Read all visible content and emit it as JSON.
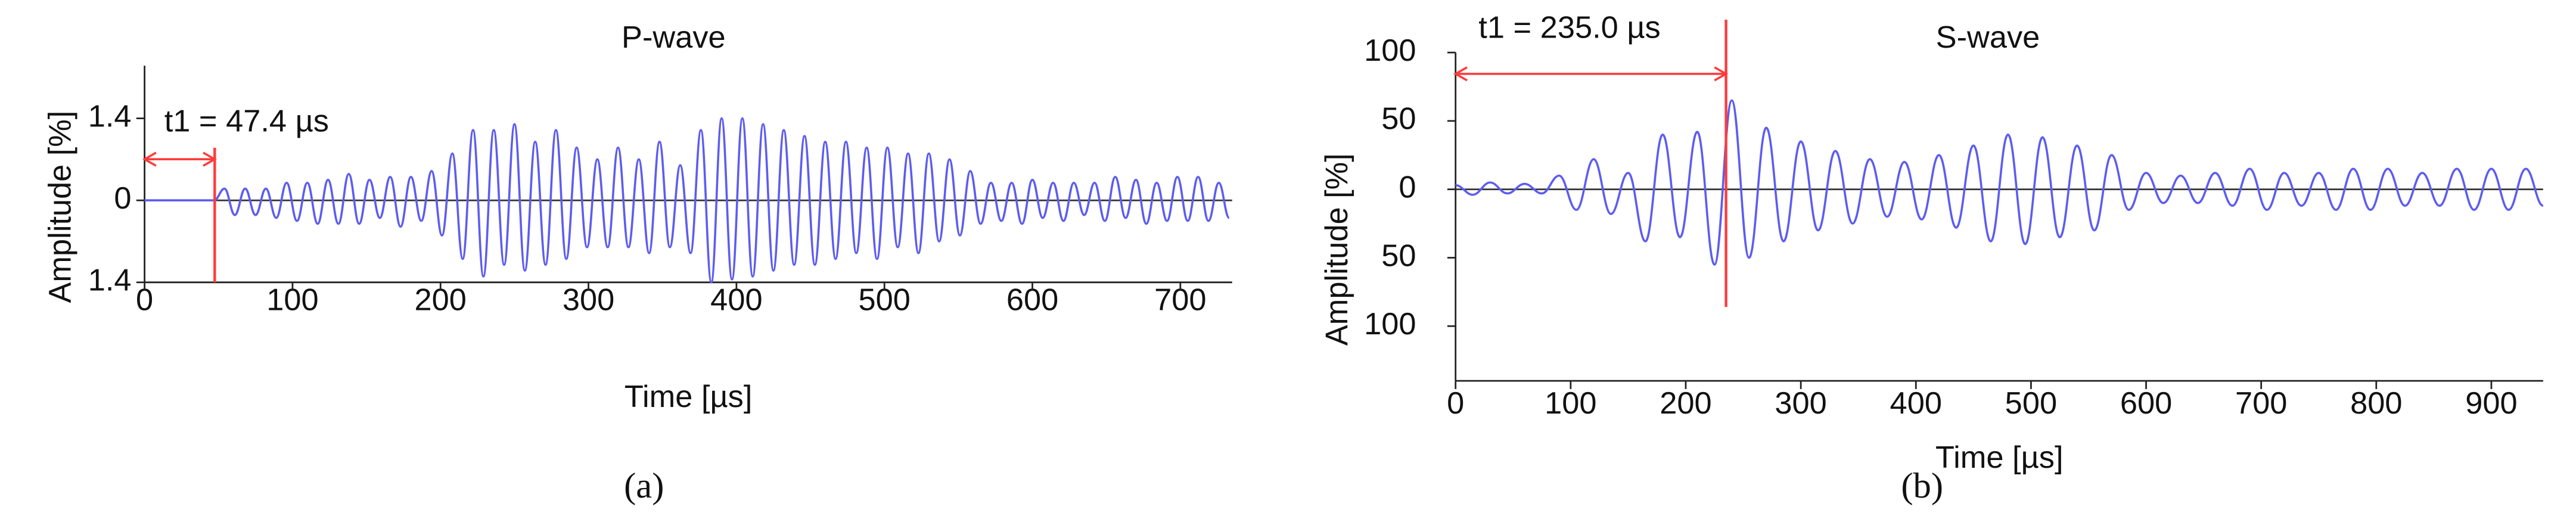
{
  "chart_data": [
    {
      "type": "line",
      "title": "P-wave",
      "x_label": "Time [µs]",
      "y_label": "Amplitude [%]",
      "caption": "(a)",
      "xlim": [
        0,
        735
      ],
      "ylim": [
        -1.4,
        2.3
      ],
      "xticks": [
        0,
        100,
        200,
        300,
        400,
        500,
        600,
        700
      ],
      "yticks": [
        1.4,
        0,
        {
          "value": -1.4,
          "label": "1.4"
        }
      ],
      "annotation": {
        "text": "t1 = 47.4 µs",
        "x": 47.4,
        "color": "#ff3b3b"
      },
      "series": [
        {
          "color": "#5c5cf2",
          "x": [
            0,
            47,
            54,
            61,
            68,
            75,
            82,
            89,
            96,
            103,
            110,
            117,
            124,
            131,
            138,
            145,
            152,
            159,
            166,
            173,
            180,
            187,
            194,
            201,
            208,
            215,
            222,
            229,
            236,
            243,
            250,
            257,
            264,
            271,
            278,
            285,
            292,
            299,
            306,
            313,
            320,
            327,
            334,
            341,
            348,
            355,
            362,
            369,
            376,
            383,
            390,
            397,
            404,
            411,
            418,
            425,
            432,
            439,
            446,
            453,
            460,
            467,
            474,
            481,
            488,
            495,
            502,
            509,
            516,
            523,
            530,
            537,
            544,
            551,
            558,
            565,
            572,
            579,
            586,
            593,
            600,
            607,
            614,
            621,
            628,
            635,
            642,
            649,
            656,
            663,
            670,
            677,
            684,
            691,
            698,
            705,
            712,
            719,
            726,
            733
          ],
          "values": [
            0,
            0,
            0.2,
            -0.25,
            0.2,
            -0.25,
            0.2,
            -0.3,
            0.3,
            -0.35,
            0.3,
            -0.4,
            0.35,
            -0.4,
            0.45,
            -0.4,
            0.35,
            -0.3,
            0.4,
            -0.45,
            0.4,
            -0.35,
            0.5,
            -0.6,
            0.8,
            -1.0,
            1.2,
            -1.3,
            1.2,
            -1.1,
            1.3,
            -1.2,
            1.0,
            -1.1,
            1.2,
            -1.0,
            0.9,
            -0.8,
            0.7,
            -0.8,
            0.9,
            -0.8,
            0.7,
            -0.9,
            1.0,
            -0.8,
            0.6,
            -0.9,
            1.2,
            -1.4,
            1.4,
            -1.35,
            1.4,
            -1.3,
            1.3,
            -1.2,
            1.2,
            -1.1,
            1.1,
            -1.1,
            1.0,
            -1.0,
            1.0,
            -0.9,
            0.9,
            -1.0,
            0.9,
            -0.8,
            0.8,
            -0.9,
            0.8,
            -0.7,
            0.7,
            -0.6,
            0.5,
            -0.4,
            0.3,
            -0.35,
            0.3,
            -0.4,
            0.35,
            -0.3,
            0.3,
            -0.35,
            0.3,
            -0.25,
            0.3,
            -0.35,
            0.4,
            -0.3,
            0.35,
            -0.4,
            0.3,
            -0.35,
            0.4,
            -0.35,
            0.4,
            -0.35,
            0.3,
            -0.3
          ]
        }
      ]
    },
    {
      "type": "line",
      "title": "S-wave",
      "x_label": "Time [µs]",
      "y_label": "Amplitude [%]",
      "caption": "(b)",
      "xlim": [
        0,
        945
      ],
      "ylim": [
        -140,
        100
      ],
      "xticks": [
        0,
        100,
        200,
        300,
        400,
        500,
        600,
        700,
        800,
        900
      ],
      "yticks": [
        100,
        50,
        0,
        {
          "value": -50,
          "label": "50"
        },
        {
          "value": -100,
          "label": "100"
        }
      ],
      "annotation": {
        "text": "t1 = 235.0 µs",
        "x": 235.0,
        "color": "#ff3b3b"
      },
      "series": [
        {
          "color": "#5c5cf2",
          "x": [
            0,
            15,
            30,
            45,
            60,
            75,
            90,
            105,
            120,
            135,
            150,
            165,
            180,
            195,
            210,
            225,
            240,
            255,
            270,
            285,
            300,
            315,
            330,
            345,
            360,
            375,
            390,
            405,
            420,
            435,
            450,
            465,
            480,
            495,
            510,
            525,
            540,
            555,
            570,
            585,
            600,
            615,
            630,
            645,
            660,
            675,
            690,
            705,
            720,
            735,
            750,
            765,
            780,
            795,
            810,
            825,
            840,
            855,
            870,
            885,
            900,
            915,
            930,
            945
          ],
          "values": [
            3,
            -4,
            5,
            -3,
            4,
            -3,
            10,
            -15,
            22,
            -18,
            12,
            -38,
            40,
            -35,
            42,
            -55,
            65,
            -50,
            45,
            -38,
            35,
            -30,
            28,
            -25,
            22,
            -20,
            20,
            -22,
            25,
            -28,
            32,
            -38,
            40,
            -40,
            38,
            -35,
            32,
            -30,
            25,
            -15,
            12,
            -10,
            10,
            -10,
            12,
            -12,
            15,
            -15,
            12,
            -12,
            12,
            -15,
            15,
            -15,
            15,
            -12,
            12,
            -12,
            15,
            -15,
            15,
            -15,
            15,
            -12
          ]
        }
      ]
    }
  ]
}
